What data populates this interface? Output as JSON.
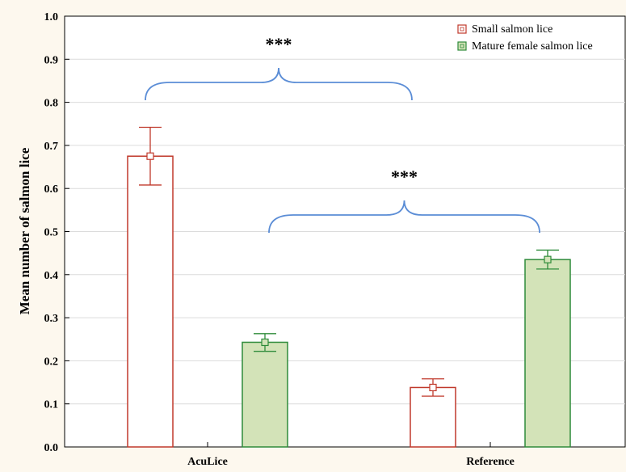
{
  "chart_data": {
    "type": "bar",
    "title": "",
    "xlabel": "",
    "ylabel": "Mean number of salmon lice",
    "ylim": [
      0,
      1.0
    ],
    "yticks": [
      "0.0",
      "0.1",
      "0.2",
      "0.3",
      "0.4",
      "0.5",
      "0.6",
      "0.7",
      "0.8",
      "0.9",
      "1.0"
    ],
    "categories": [
      "AcuLice",
      "Reference"
    ],
    "grid": true,
    "legend_position": "top-right",
    "series": [
      {
        "name": "Small salmon lice",
        "values": [
          0.675,
          0.138
        ],
        "error_low": [
          0.608,
          0.118
        ],
        "error_high": [
          0.742,
          0.158
        ],
        "color": "#c0392b",
        "fill": "#ffffff"
      },
      {
        "name": "Mature female salmon lice",
        "values": [
          0.243,
          0.435
        ],
        "error_low": [
          0.222,
          0.413
        ],
        "error_high": [
          0.263,
          0.457
        ],
        "color": "#2e8b3a",
        "fill": "#d3e3b8"
      }
    ],
    "annotations": [
      {
        "text": "***",
        "between": "AcuLice groups vs Reference groups (small lice)",
        "bracket_y": 0.81
      },
      {
        "text": "***",
        "between": "AcuLice vs Reference (mature female lice)",
        "bracket_y": 0.5
      }
    ],
    "bracket_color": "#5b8dd6"
  }
}
